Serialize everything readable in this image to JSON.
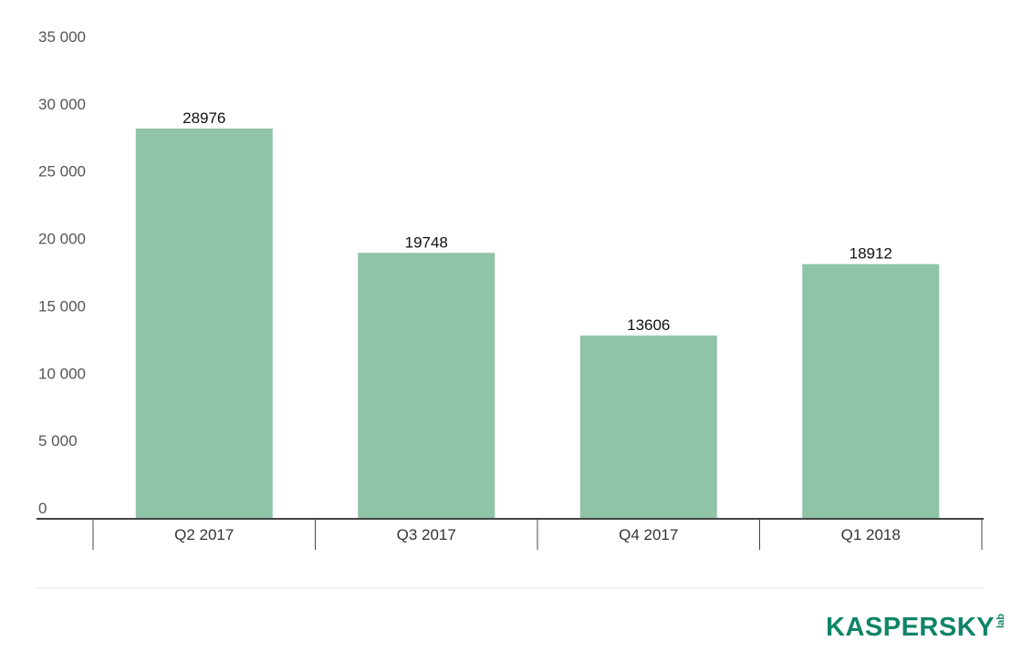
{
  "chart_data": {
    "type": "bar",
    "categories": [
      "Q2 2017",
      "Q3 2017",
      "Q4 2017",
      "Q1 2018"
    ],
    "values": [
      28976,
      19748,
      13606,
      18912
    ],
    "data_labels": [
      "28976",
      "19748",
      "13606",
      "18912"
    ],
    "title": "",
    "xlabel": "",
    "ylabel": "",
    "ylim": [
      0,
      35000
    ],
    "yticks": [
      0,
      5000,
      10000,
      15000,
      20000,
      25000,
      30000,
      35000
    ],
    "ytick_labels": [
      "0",
      "5 000",
      "10 000",
      "15 000",
      "20 000",
      "25 000",
      "30 000",
      "35 000"
    ],
    "grid": false,
    "legend": "none",
    "bar_color": "#8fc4a8"
  },
  "logo": {
    "text": "KASPERSKY",
    "suffix": "lab",
    "color": "#0f8468",
    "accent_color": "#e2231a"
  }
}
